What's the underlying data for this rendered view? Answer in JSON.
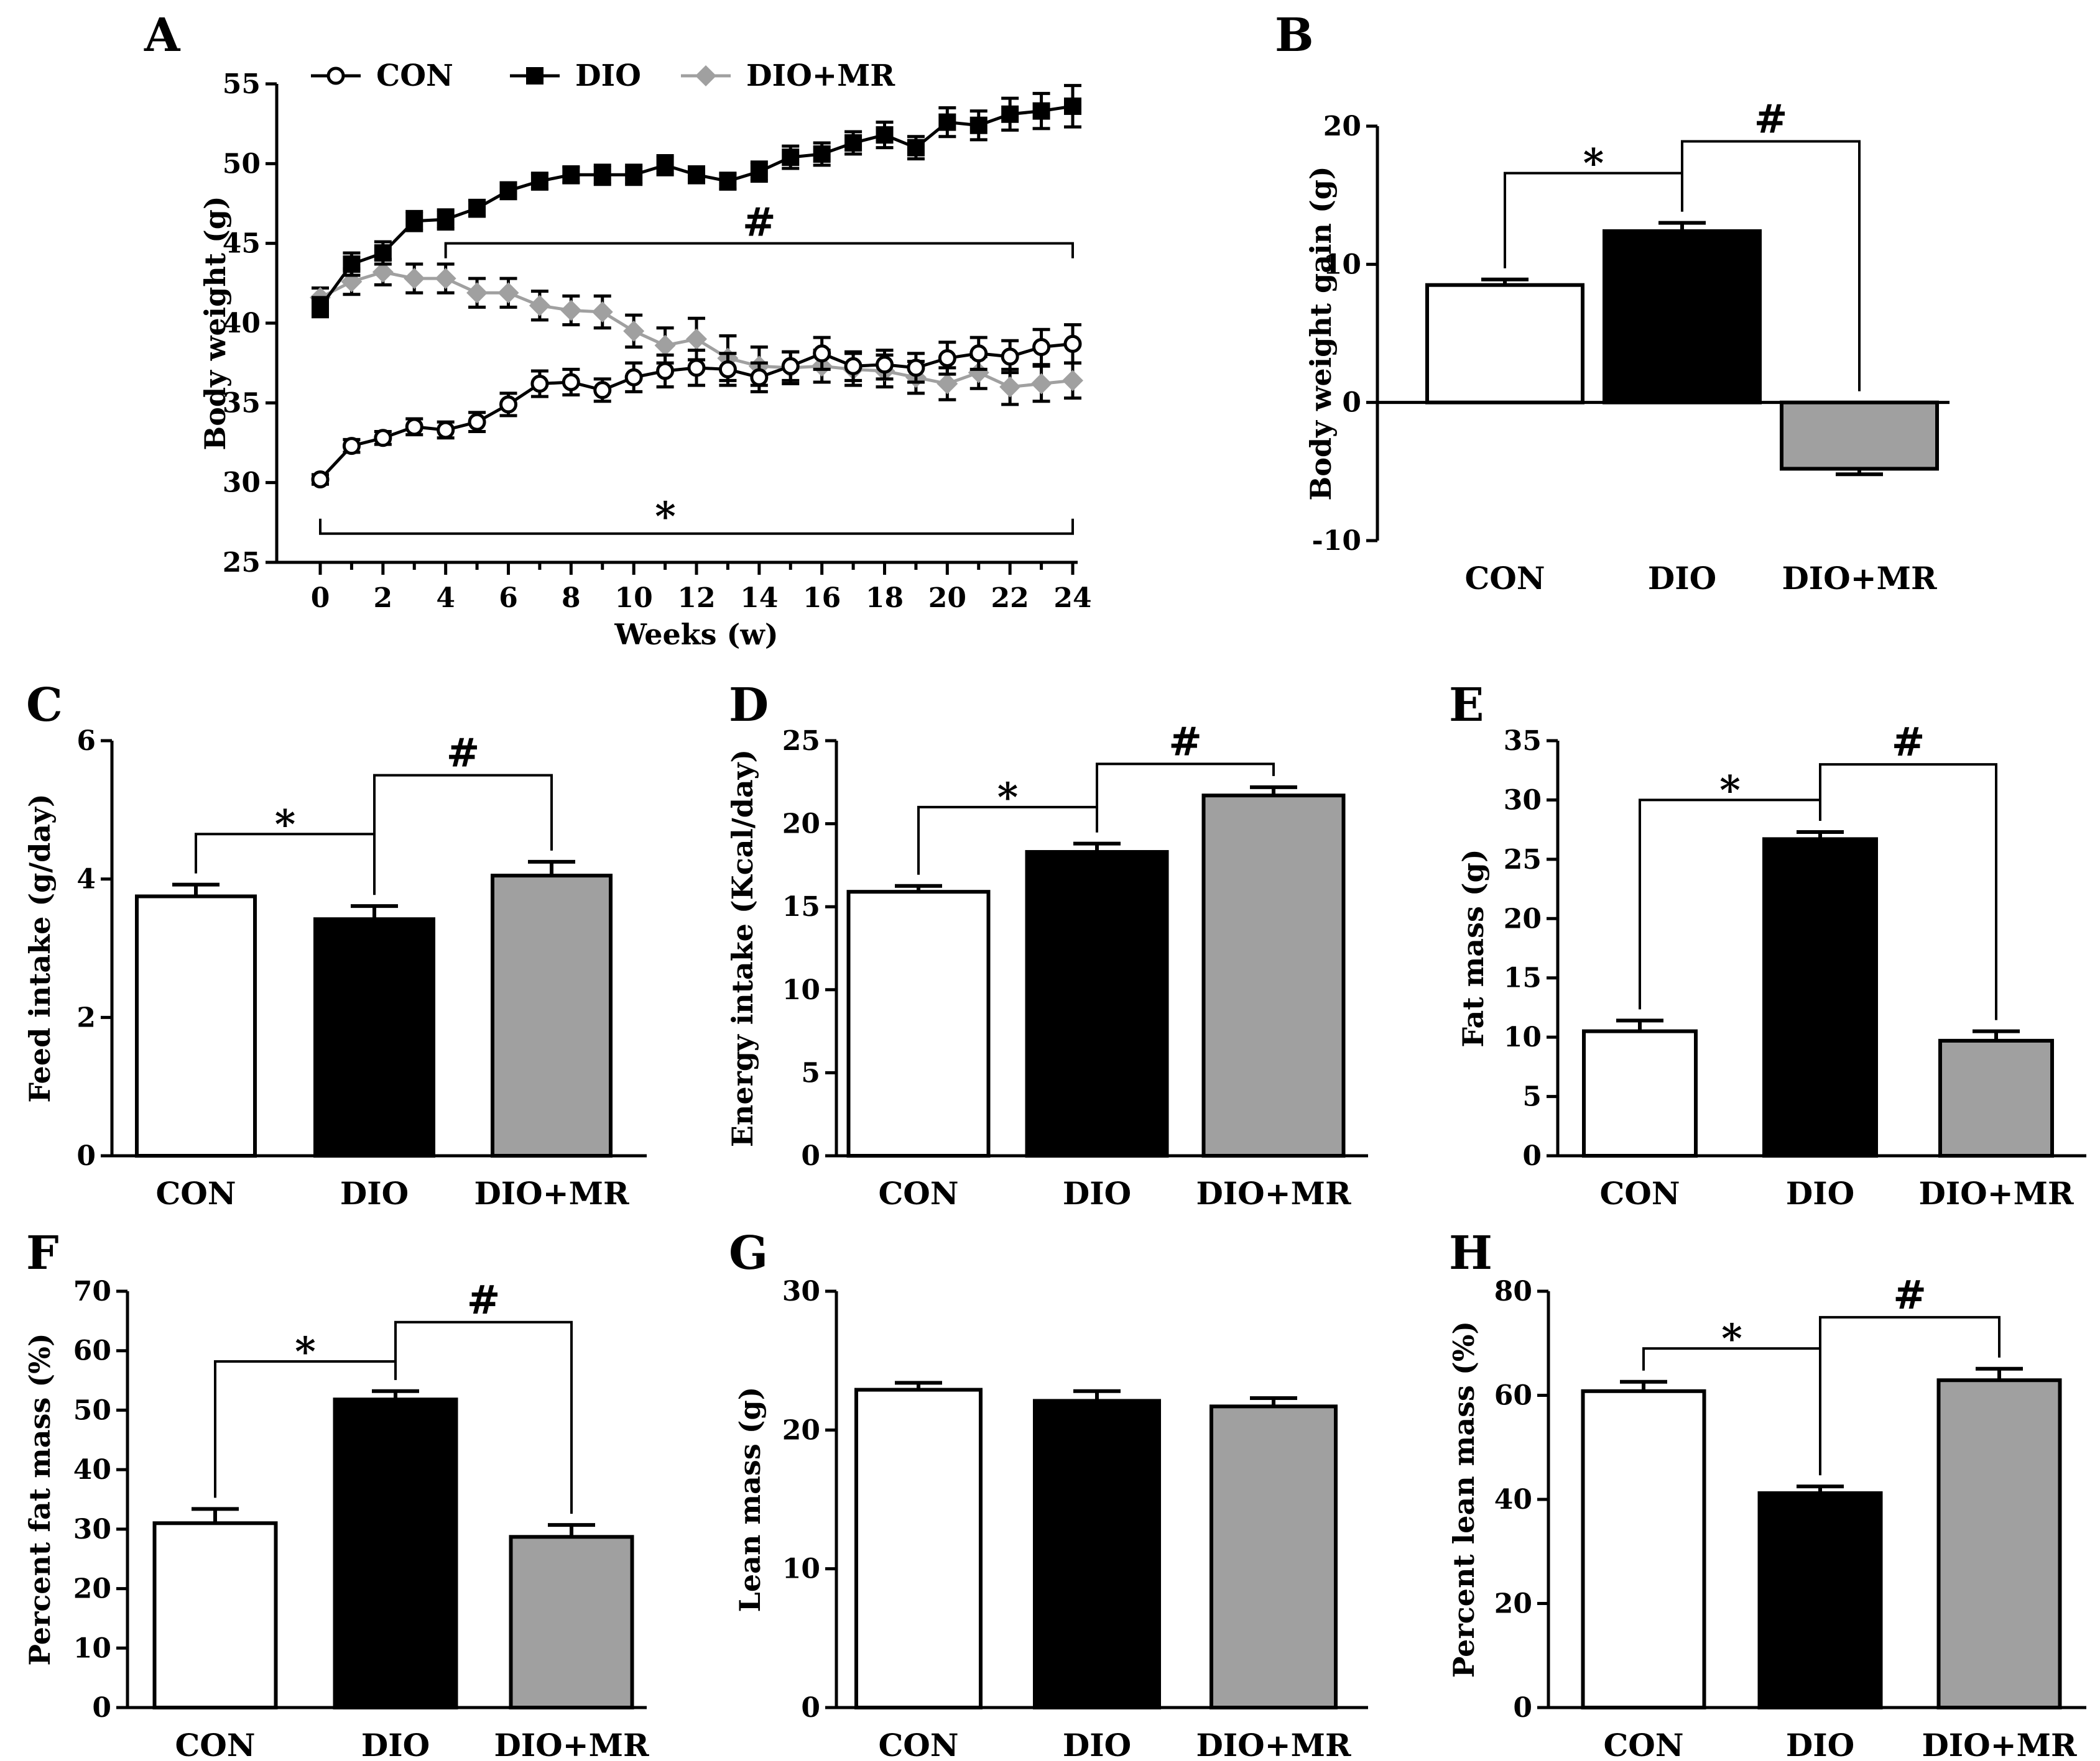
{
  "colors": {
    "con": "#ffffff",
    "dio": "#000000",
    "dio_mr": "#a0a0a0",
    "ink": "#000000"
  },
  "chart_data": [
    {
      "id": "A",
      "type": "line",
      "panel_label": "A",
      "xlabel": "Weeks (w)",
      "ylabel": "Body weight (g)",
      "xlim": [
        0,
        24
      ],
      "ylim": [
        25,
        55
      ],
      "xticks": [
        "0",
        "2",
        "4",
        "6",
        "8",
        "10",
        "12",
        "14",
        "16",
        "18",
        "20",
        "22",
        "24"
      ],
      "yticks": [
        "25",
        "30",
        "35",
        "40",
        "45",
        "50",
        "55"
      ],
      "legend": [
        "CON",
        "DIO",
        "DIO+MR"
      ],
      "x": [
        0,
        1,
        2,
        3,
        4,
        5,
        6,
        7,
        8,
        9,
        10,
        11,
        12,
        13,
        14,
        15,
        16,
        17,
        18,
        19,
        20,
        21,
        22,
        23,
        24
      ],
      "series": [
        {
          "name": "CON",
          "marker": "circle",
          "values": [
            30.2,
            32.3,
            32.8,
            33.5,
            33.3,
            33.8,
            34.9,
            36.2,
            36.3,
            35.8,
            36.6,
            37.0,
            37.2,
            37.1,
            36.6,
            37.3,
            38.1,
            37.3,
            37.4,
            37.2,
            37.8,
            38.1,
            37.9,
            38.5,
            38.7
          ],
          "err": [
            0.3,
            0.4,
            0.4,
            0.5,
            0.5,
            0.6,
            0.7,
            0.8,
            0.8,
            0.7,
            0.9,
            1.0,
            1.1,
            1.0,
            0.9,
            0.9,
            1.0,
            0.9,
            0.9,
            0.9,
            1.0,
            1.0,
            1.0,
            1.1,
            1.2
          ]
        },
        {
          "name": "DIO",
          "marker": "square",
          "values": [
            41.0,
            43.7,
            44.4,
            46.4,
            46.5,
            47.2,
            48.3,
            48.9,
            49.3,
            49.3,
            49.3,
            49.9,
            49.3,
            48.9,
            49.5,
            50.4,
            50.6,
            51.3,
            51.8,
            51.0,
            52.6,
            52.4,
            53.1,
            53.3,
            53.6
          ],
          "err": [
            0.6,
            0.7,
            0.7,
            0.6,
            0.6,
            0.5,
            0.5,
            0.5,
            0.5,
            0.6,
            0.6,
            0.6,
            0.5,
            0.5,
            0.6,
            0.7,
            0.7,
            0.7,
            0.8,
            0.7,
            0.9,
            0.9,
            1.0,
            1.1,
            1.3
          ]
        },
        {
          "name": "DIO+MR",
          "marker": "diamond",
          "values": [
            41.6,
            42.6,
            43.2,
            42.8,
            42.8,
            41.9,
            41.9,
            41.1,
            40.8,
            40.7,
            39.5,
            38.6,
            39.0,
            37.8,
            37.3,
            37.2,
            37.3,
            37.1,
            37.0,
            36.6,
            36.2,
            36.9,
            36.0,
            36.2,
            36.4
          ],
          "err": [
            0.6,
            0.8,
            0.8,
            0.9,
            0.9,
            0.9,
            0.9,
            0.9,
            0.9,
            1.0,
            1.0,
            1.1,
            1.3,
            1.4,
            1.2,
            1.0,
            1.0,
            1.0,
            1.0,
            1.0,
            1.0,
            1.0,
            1.1,
            1.1,
            1.1
          ]
        }
      ],
      "annotations": {
        "hash": {
          "text": "#",
          "x_from": 4,
          "x_to": 24,
          "y": 45.0
        },
        "star": {
          "text": "*",
          "x_from": 0,
          "x_to": 24,
          "y": 26.8
        }
      }
    },
    {
      "id": "B",
      "type": "bar",
      "panel_label": "B",
      "ylabel": "Body weight gain (g)",
      "categories": [
        "CON",
        "DIO",
        "DIO+MR"
      ],
      "values": [
        8.5,
        12.4,
        -4.8
      ],
      "err": [
        0.4,
        0.6,
        0.4
      ],
      "ylim": [
        -10,
        20
      ],
      "yticks": [
        "-10",
        "0",
        "10",
        "20"
      ],
      "sig": [
        {
          "text": "*",
          "from": 0,
          "to": 1,
          "y": 16.6
        },
        {
          "text": "#",
          "from": 1,
          "to": 2,
          "y": 18.9
        }
      ]
    },
    {
      "id": "C",
      "type": "bar",
      "panel_label": "C",
      "ylabel": "Feed intake (g/day)",
      "categories": [
        "CON",
        "DIO",
        "DIO+MR"
      ],
      "values": [
        3.75,
        3.42,
        4.05
      ],
      "err": [
        0.17,
        0.19,
        0.2
      ],
      "ylim": [
        0,
        6
      ],
      "yticks": [
        "0",
        "2",
        "4",
        "6"
      ],
      "sig": [
        {
          "text": "*",
          "from": 0,
          "to": 1,
          "y": 4.65
        },
        {
          "text": "#",
          "from": 1,
          "to": 2,
          "y": 5.5
        }
      ]
    },
    {
      "id": "D",
      "type": "bar",
      "panel_label": "D",
      "ylabel": "Energy intake (Kcal/day)",
      "categories": [
        "CON",
        "DIO",
        "DIO+MR"
      ],
      "values": [
        15.9,
        18.3,
        21.7
      ],
      "err": [
        0.35,
        0.5,
        0.5
      ],
      "ylim": [
        0,
        25
      ],
      "yticks": [
        "0",
        "5",
        "10",
        "15",
        "20",
        "25"
      ],
      "sig": [
        {
          "text": "*",
          "from": 0,
          "to": 1,
          "y": 21.0
        },
        {
          "text": "#",
          "from": 1,
          "to": 2,
          "y": 23.6
        }
      ]
    },
    {
      "id": "E",
      "type": "bar",
      "panel_label": "E",
      "ylabel": "Fat mass (g)",
      "categories": [
        "CON",
        "DIO",
        "DIO+MR"
      ],
      "values": [
        10.5,
        26.7,
        9.7
      ],
      "err": [
        0.9,
        0.6,
        0.8
      ],
      "ylim": [
        0,
        35
      ],
      "yticks": [
        "0",
        "5",
        "10",
        "15",
        "20",
        "25",
        "30",
        "35"
      ],
      "sig": [
        {
          "text": "*",
          "from": 0,
          "to": 1,
          "y": 30.0
        },
        {
          "text": "#",
          "from": 1,
          "to": 2,
          "y": 33.0
        }
      ]
    },
    {
      "id": "F",
      "type": "bar",
      "panel_label": "F",
      "ylabel": "Percent fat mass (%)",
      "categories": [
        "CON",
        "DIO",
        "DIO+MR"
      ],
      "values": [
        31.0,
        51.8,
        28.7
      ],
      "err": [
        2.4,
        1.4,
        2.0
      ],
      "ylim": [
        0,
        70
      ],
      "yticks": [
        "0",
        "10",
        "20",
        "30",
        "40",
        "50",
        "60",
        "70"
      ],
      "sig": [
        {
          "text": "*",
          "from": 0,
          "to": 1,
          "y": 58.2
        },
        {
          "text": "#",
          "from": 1,
          "to": 2,
          "y": 64.8
        }
      ]
    },
    {
      "id": "G",
      "type": "bar",
      "panel_label": "G",
      "ylabel": "Lean mass (g)",
      "categories": [
        "CON",
        "DIO",
        "DIO+MR"
      ],
      "values": [
        22.9,
        22.1,
        21.7
      ],
      "err": [
        0.5,
        0.7,
        0.6
      ],
      "ylim": [
        0,
        30
      ],
      "yticks": [
        "0",
        "10",
        "20",
        "30"
      ],
      "sig": []
    },
    {
      "id": "H",
      "type": "bar",
      "panel_label": "H",
      "ylabel": "Percent lean mass (%)",
      "categories": [
        "CON",
        "DIO",
        "DIO+MR"
      ],
      "values": [
        60.8,
        41.2,
        62.9
      ],
      "err": [
        1.8,
        1.3,
        2.2
      ],
      "ylim": [
        0,
        80
      ],
      "yticks": [
        "0",
        "20",
        "40",
        "60",
        "80"
      ],
      "sig": [
        {
          "text": "*",
          "from": 0,
          "to": 1,
          "y": 69.0
        },
        {
          "text": "#",
          "from": 1,
          "to": 2,
          "y": 75.0
        }
      ]
    }
  ]
}
